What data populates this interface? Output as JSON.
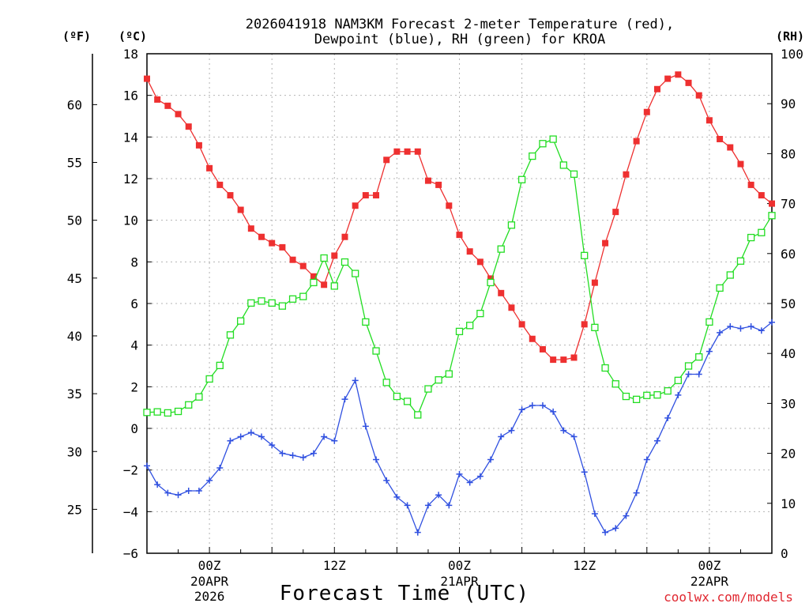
{
  "title_line1": "2026041918 NAM3KM Forecast 2-meter Temperature (red),",
  "title_line2": "Dewpoint (blue), RH (green) for KROA",
  "credit": "coolwx.com/models",
  "xlabel": "Forecast Time (UTC)",
  "unit_labels": {
    "fahrenheit": "(ºF)",
    "celsius": "(ºC)",
    "rh": "(RH)"
  },
  "chart_data": {
    "type": "line",
    "title": "2026041918 NAM3KM Forecast 2-meter Temperature (red), Dewpoint (blue), RH (green) for KROA",
    "xlabel": "Forecast Time (UTC)",
    "x_unit": "forecast hour",
    "xlim": [
      0,
      60
    ],
    "x_ticks": [
      {
        "x": 6,
        "label": "00Z",
        "date": "20APR",
        "year": "2026"
      },
      {
        "x": 18,
        "label": "12Z"
      },
      {
        "x": 30,
        "label": "00Z",
        "date": "21APR"
      },
      {
        "x": 42,
        "label": "12Z"
      },
      {
        "x": 54,
        "label": "00Z",
        "date": "22APR"
      }
    ],
    "axes": {
      "left_celsius": {
        "label": "(ºC)",
        "ylim": [
          -6,
          18
        ],
        "ticks": [
          -6,
          -4,
          -2,
          0,
          2,
          4,
          6,
          8,
          10,
          12,
          14,
          16,
          18
        ]
      },
      "left_fahrenheit": {
        "label": "(ºF)",
        "ticks": [
          25,
          30,
          35,
          40,
          45,
          50,
          55,
          60
        ]
      },
      "right_rh": {
        "label": "(RH)",
        "ylim": [
          0,
          100
        ],
        "ticks": [
          0,
          10,
          20,
          30,
          40,
          50,
          60,
          70,
          80,
          90,
          100
        ]
      }
    },
    "grid": true,
    "series": [
      {
        "name": "2-meter Temperature",
        "axis": "celsius",
        "color": "#ee3030",
        "marker": "filled-square",
        "values": [
          16.8,
          15.8,
          15.5,
          15.1,
          14.5,
          13.6,
          12.5,
          11.7,
          11.2,
          10.5,
          9.6,
          9.2,
          8.9,
          8.7,
          8.1,
          7.8,
          7.3,
          6.9,
          8.3,
          9.2,
          10.7,
          11.2,
          11.2,
          12.9,
          13.3,
          13.3,
          13.3,
          11.9,
          11.7,
          10.7,
          9.3,
          8.5,
          8.0,
          7.2,
          6.5,
          5.8,
          5.0,
          4.3,
          3.8,
          3.3,
          3.3,
          3.4,
          5.0,
          7.0,
          8.9,
          10.4,
          12.2,
          13.8,
          15.2,
          16.3,
          16.8,
          17.0,
          16.6,
          16.0,
          14.8,
          13.9,
          13.5,
          12.7,
          11.7,
          11.2,
          10.8
        ]
      },
      {
        "name": "Dewpoint",
        "axis": "celsius",
        "color": "#3050e0",
        "marker": "plus",
        "values": [
          -1.8,
          -2.7,
          -3.1,
          -3.2,
          -3.0,
          -3.0,
          -2.5,
          -1.9,
          -0.6,
          -0.4,
          -0.2,
          -0.4,
          -0.8,
          -1.2,
          -1.3,
          -1.4,
          -1.2,
          -0.4,
          -0.6,
          1.4,
          2.3,
          0.1,
          -1.5,
          -2.5,
          -3.3,
          -3.7,
          -5.0,
          -3.7,
          -3.2,
          -3.7,
          -2.2,
          -2.6,
          -2.3,
          -1.5,
          -0.4,
          -0.1,
          0.9,
          1.1,
          1.1,
          0.8,
          -0.1,
          -0.4,
          -2.1,
          -4.1,
          -5.0,
          -4.8,
          -4.2,
          -3.1,
          -1.5,
          -0.6,
          0.5,
          1.6,
          2.6,
          2.6,
          3.7,
          4.6,
          4.9,
          4.8,
          4.9,
          4.7,
          5.1
        ]
      },
      {
        "name": "RH",
        "axis": "rh",
        "color": "#22dd22",
        "marker": "open-square",
        "values": [
          28.2,
          28.3,
          28.1,
          28.4,
          29.7,
          31.3,
          34.9,
          37.6,
          43.7,
          46.5,
          50.1,
          50.5,
          50.1,
          49.5,
          50.9,
          51.4,
          54.2,
          59.1,
          53.5,
          58.3,
          56.0,
          46.3,
          40.5,
          34.2,
          31.4,
          30.4,
          27.7,
          32.9,
          34.7,
          35.9,
          44.4,
          45.6,
          48.0,
          54.2,
          60.9,
          65.7,
          74.8,
          79.5,
          82.0,
          82.9,
          77.7,
          75.9,
          59.6,
          45.2,
          37.1,
          33.9,
          31.4,
          30.8,
          31.6,
          31.7,
          32.5,
          34.6,
          37.5,
          39.3,
          46.3,
          53.1,
          55.7,
          58.5,
          63.2,
          64.2,
          67.6
        ]
      }
    ]
  }
}
